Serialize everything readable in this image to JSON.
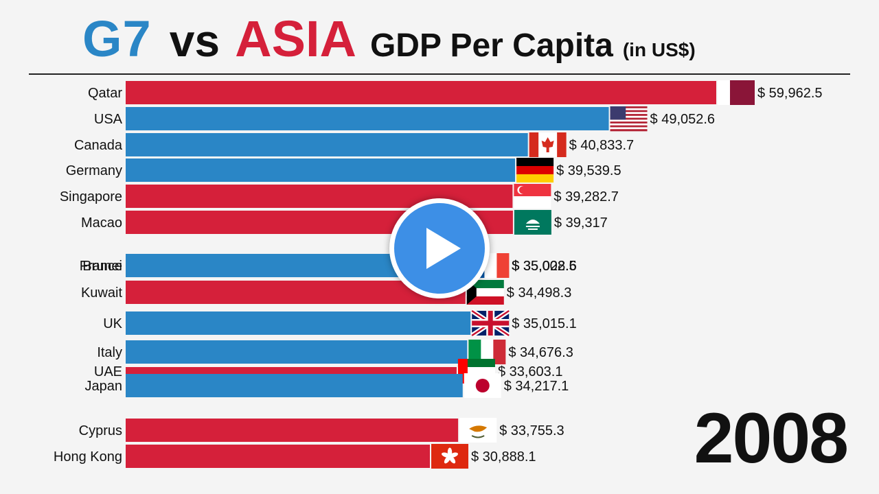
{
  "header": {
    "g7": "G7",
    "vs": "vs",
    "asia": "ASIA",
    "gdp": "GDP Per Capita",
    "unit": "(in US$)"
  },
  "year": "2008",
  "player": {
    "icon": "play-icon"
  },
  "colors": {
    "g7": "#2a86c6",
    "asia": "#d5203a",
    "text": "#111111",
    "background": "#f4f4f4"
  },
  "chart_data": {
    "type": "bar",
    "orientation": "horizontal",
    "title": "G7 vs ASIA GDP Per Capita (in US$)",
    "xlim": [
      0,
      61000
    ],
    "value_prefix": "$ ",
    "bars": [
      {
        "category": "Qatar",
        "value": 59962.5,
        "value_label": "$ 59,962.5",
        "group": "asia",
        "flag": "qatar-flag-icon"
      },
      {
        "category": "USA",
        "value": 49052.6,
        "value_label": "$ 49,052.6",
        "group": "g7",
        "flag": "usa-flag-icon"
      },
      {
        "category": "Canada",
        "value": 40833.7,
        "value_label": "$ 40,833.7",
        "group": "g7",
        "flag": "canada-flag-icon"
      },
      {
        "category": "Germany",
        "value": 39539.5,
        "value_label": "$ 39,539.5",
        "group": "g7",
        "flag": "germany-flag-icon"
      },
      {
        "category": "Singapore",
        "value": 39282.7,
        "value_label": "$ 39,282.7",
        "group": "asia",
        "flag": "singapore-flag-icon"
      },
      {
        "category": "Macao",
        "value": 39317,
        "value_label": "$ 39,317",
        "group": "asia",
        "flag": "macao-flag-icon"
      },
      {
        "category": "Brunei",
        "value": 35002.5,
        "value_label": "$ 35,002.5",
        "group": "asia",
        "flag": "brunei-flag-icon"
      },
      {
        "category": "France",
        "value": 35028.6,
        "value_label": "$ 35,028.6",
        "group": "g7",
        "flag": "france-flag-icon"
      },
      {
        "category": "Kuwait",
        "value": 34498.3,
        "value_label": "$ 34,498.3",
        "group": "asia",
        "flag": "kuwait-flag-icon"
      },
      {
        "category": "UK",
        "value": 35015.1,
        "value_label": "$ 35,015.1",
        "group": "g7",
        "flag": "uk-flag-icon"
      },
      {
        "category": "Italy",
        "value": 34676.3,
        "value_label": "$ 34,676.3",
        "group": "g7",
        "flag": "italy-flag-icon"
      },
      {
        "category": "UAE",
        "value": 33603.1,
        "value_label": "$ 33,603.1",
        "group": "asia",
        "flag": "uae-flag-icon"
      },
      {
        "category": "Japan",
        "value": 34217.1,
        "value_label": "$ 34,217.1",
        "group": "g7",
        "flag": "japan-flag-icon"
      },
      {
        "category": "Cyprus",
        "value": 33755.3,
        "value_label": "$ 33,755.3",
        "group": "asia",
        "flag": "cyprus-flag-icon"
      },
      {
        "category": "Hong Kong",
        "value": 30888.1,
        "value_label": "$ 30,888.1",
        "group": "asia",
        "flag": "hong-kong-flag-icon"
      }
    ]
  }
}
